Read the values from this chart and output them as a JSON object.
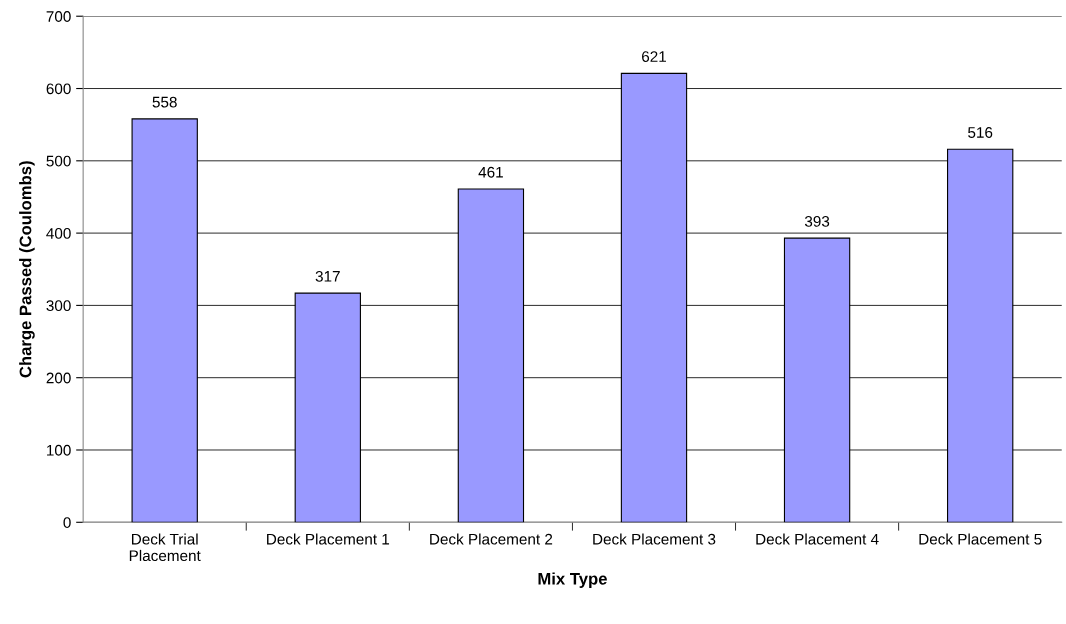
{
  "chart_data": {
    "type": "bar",
    "xlabel": "Mix Type",
    "ylabel": "Charge Passed (Coulombs)",
    "categories": [
      "Deck Trial\nPlacement",
      "Deck Placement 1",
      "Deck Placement 2",
      "Deck Placement 3",
      "Deck Placement 4",
      "Deck Placement 5"
    ],
    "values": [
      558,
      317,
      461,
      621,
      393,
      516
    ],
    "color": "#9999ff",
    "ylim": [
      0,
      700
    ],
    "yticks": [
      0,
      100,
      200,
      300,
      400,
      500,
      600,
      700
    ],
    "grid": "y",
    "data_labels": true,
    "legend": false
  }
}
